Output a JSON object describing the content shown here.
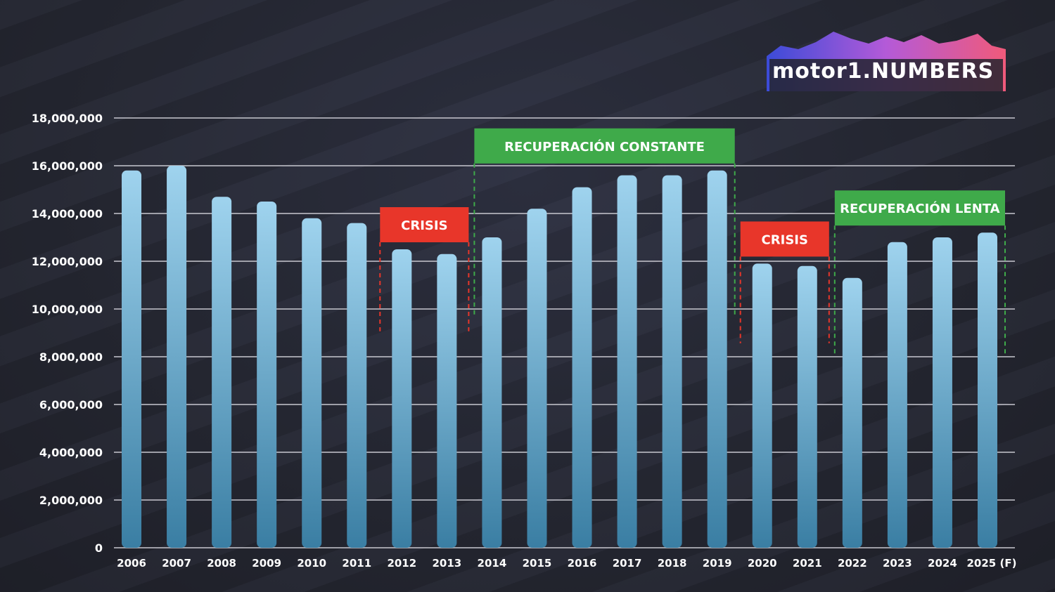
{
  "logo": {
    "text": "motor1.NUMBERS"
  },
  "chart_data": {
    "type": "bar",
    "title": "",
    "xlabel": "",
    "ylabel": "",
    "ylim": [
      0,
      18000000
    ],
    "yticks": [
      0,
      2000000,
      4000000,
      6000000,
      8000000,
      10000000,
      12000000,
      14000000,
      16000000,
      18000000
    ],
    "ytick_labels": [
      "0",
      "2,000,000",
      "4,000,000",
      "6,000,000",
      "8,000,000",
      "10,000,000",
      "12,000,000",
      "14,000,000",
      "16,000,000",
      "18,000,000"
    ],
    "grid": true,
    "categories": [
      "2006",
      "2007",
      "2008",
      "2009",
      "2010",
      "2011",
      "2012",
      "2013",
      "2014",
      "2015",
      "2016",
      "2017",
      "2018",
      "2019",
      "2020",
      "2021",
      "2022",
      "2023",
      "2024",
      "2025 (F)"
    ],
    "values": [
      15800000,
      16000000,
      14700000,
      14500000,
      13800000,
      13600000,
      12500000,
      12300000,
      13000000,
      14200000,
      15100000,
      15600000,
      15600000,
      15800000,
      11900000,
      11800000,
      11300000,
      12800000,
      13000000,
      13200000
    ],
    "bar_color_top": "#9fd3ee",
    "bar_color_bottom": "#3a7ea3",
    "annotations": [
      {
        "label": "CRISIS",
        "from": "2012",
        "to": "2013",
        "color": "#e8362a"
      },
      {
        "label": "RECUPERACIÓN CONSTANTE",
        "from": "2014",
        "to": "2019",
        "color": "#3faa4a"
      },
      {
        "label": "CRISIS",
        "from": "2020",
        "to": "2021",
        "color": "#e8362a"
      },
      {
        "label": "RECUPERACIÓN LENTA",
        "from": "2022",
        "to": "2025 (F)",
        "color": "#3faa4a"
      }
    ]
  }
}
